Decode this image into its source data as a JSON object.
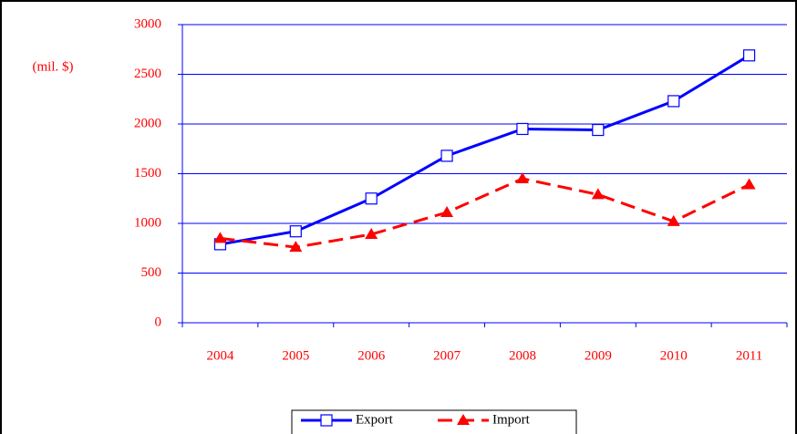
{
  "chart_data": {
    "type": "line",
    "y_label": "(mil. $)",
    "categories": [
      "2004",
      "2005",
      "2006",
      "2007",
      "2008",
      "2009",
      "2010",
      "2011"
    ],
    "series": [
      {
        "name": "Export",
        "color": "#0000ff",
        "marker": "square",
        "dash": "solid",
        "values": [
          790,
          920,
          1250,
          1680,
          1950,
          1940,
          2230,
          2690
        ]
      },
      {
        "name": "Import",
        "color": "#ff0000",
        "marker": "triangle",
        "dash": "dashed",
        "values": [
          850,
          760,
          890,
          1110,
          1450,
          1290,
          1020,
          1390
        ]
      }
    ],
    "ylim": [
      0,
      3000
    ],
    "yticks": [
      0,
      500,
      1000,
      1500,
      2000,
      2500,
      3000
    ],
    "grid": true,
    "legend": "bottom"
  }
}
